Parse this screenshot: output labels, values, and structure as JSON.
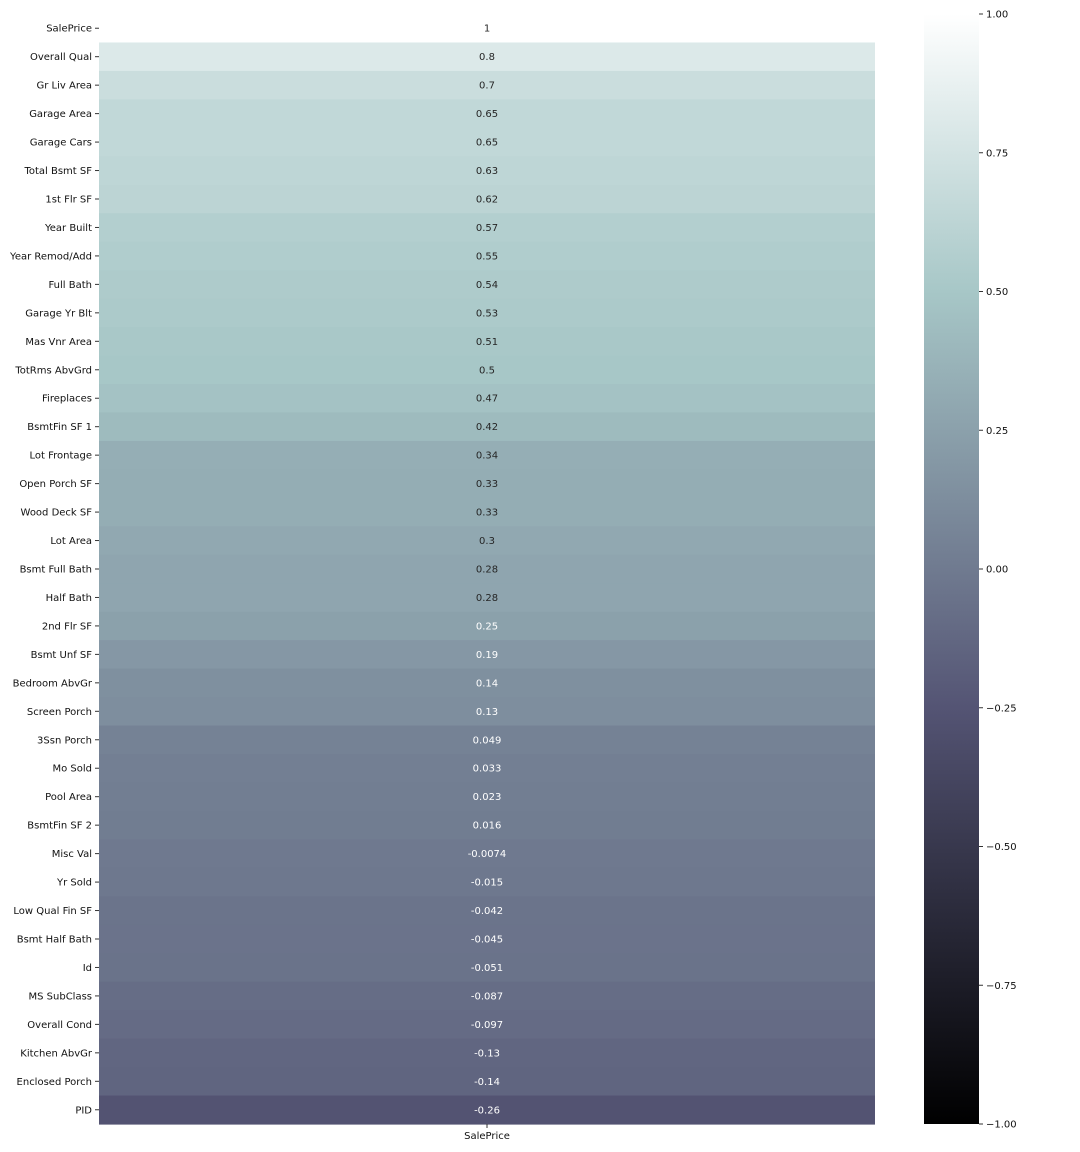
{
  "chart_data": {
    "type": "heatmap",
    "columns": [
      "SalePrice"
    ],
    "rows": [
      "SalePrice",
      "Overall Qual",
      "Gr Liv Area",
      "Garage Area",
      "Garage Cars",
      "Total Bsmt SF",
      "1st Flr SF",
      "Year Built",
      "Year Remod/Add",
      "Full Bath",
      "Garage Yr Blt",
      "Mas Vnr Area",
      "TotRms AbvGrd",
      "Fireplaces",
      "BsmtFin SF 1",
      "Lot Frontage",
      "Open Porch SF",
      "Wood Deck SF",
      "Lot Area",
      "Bsmt Full Bath",
      "Half Bath",
      "2nd Flr SF",
      "Bsmt Unf SF",
      "Bedroom AbvGr",
      "Screen Porch",
      "3Ssn Porch",
      "Mo Sold",
      "Pool Area",
      "BsmtFin SF 2",
      "Misc Val",
      "Yr Sold",
      "Low Qual Fin SF",
      "Bsmt Half Bath",
      "Id",
      "MS SubClass",
      "Overall Cond",
      "Kitchen AbvGr",
      "Enclosed Porch",
      "PID"
    ],
    "values": [
      1,
      0.8,
      0.7,
      0.65,
      0.65,
      0.63,
      0.62,
      0.57,
      0.55,
      0.54,
      0.53,
      0.51,
      0.5,
      0.47,
      0.42,
      0.34,
      0.33,
      0.33,
      0.3,
      0.28,
      0.28,
      0.25,
      0.19,
      0.14,
      0.13,
      0.049,
      0.033,
      0.023,
      0.016,
      -0.0074,
      -0.015,
      -0.042,
      -0.045,
      -0.051,
      -0.087,
      -0.097,
      -0.13,
      -0.14,
      -0.26
    ],
    "labels": [
      "1",
      "0.8",
      "0.7",
      "0.65",
      "0.65",
      "0.63",
      "0.62",
      "0.57",
      "0.55",
      "0.54",
      "0.53",
      "0.51",
      "0.5",
      "0.47",
      "0.42",
      "0.34",
      "0.33",
      "0.33",
      "0.3",
      "0.28",
      "0.28",
      "0.25",
      "0.19",
      "0.14",
      "0.13",
      "0.049",
      "0.033",
      "0.023",
      "0.016",
      "-0.0074",
      "-0.015",
      "-0.042",
      "-0.045",
      "-0.051",
      "-0.087",
      "-0.097",
      "-0.13",
      "-0.14",
      "-0.26"
    ],
    "vmin": -1,
    "vmax": 1,
    "colorbar_ticks": [
      1.0,
      0.75,
      0.5,
      0.25,
      0.0,
      -0.25,
      -0.5,
      -0.75,
      -1.0
    ],
    "colorbar_tick_labels": [
      "1.00",
      "0.75",
      "0.50",
      "0.25",
      "0.00",
      "−0.25",
      "−0.50",
      "−0.75",
      "−1.00"
    ],
    "colormap": "bone",
    "colormap_stops": [
      {
        "v": 0.0,
        "color": "#000000"
      },
      {
        "v": 0.375,
        "color": "#545474"
      },
      {
        "v": 0.75,
        "color": "#a7c7c7"
      },
      {
        "v": 1.0,
        "color": "#ffffff"
      }
    ],
    "light_text_color": "#ffffff",
    "dark_text_color": "#262626"
  }
}
